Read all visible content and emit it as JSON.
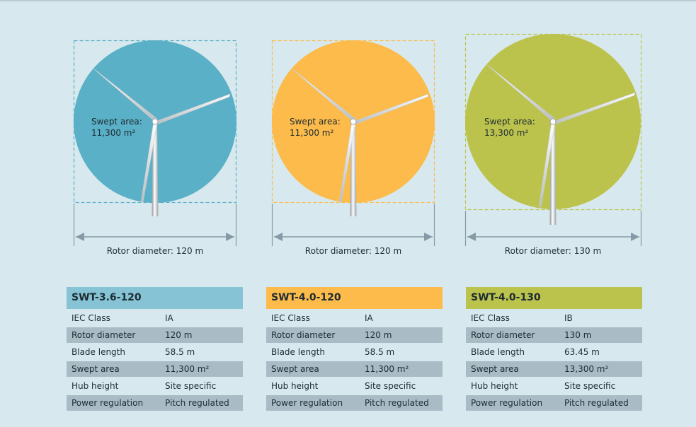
{
  "colors": {
    "background": "#d7e9ee",
    "blue": "#5ab0c6",
    "orange": "#fcbb4a",
    "green": "#bcc34d",
    "blue_head": "#86c3d4",
    "orange_head": "#fcbb4a",
    "green_head": "#bcc34d",
    "row_shade": "#a9bcc6",
    "dimension_line": "#8699a6"
  },
  "turbines": [
    {
      "model": "SWT-3.6-120",
      "swept_label": "Swept area:",
      "swept_value": "11,300 m²",
      "diameter_label": "Rotor diameter: 120 m",
      "specs": [
        {
          "key": "IEC Class",
          "value": "IA"
        },
        {
          "key": "Rotor diameter",
          "value": "120 m"
        },
        {
          "key": "Blade length",
          "value": "58.5 m"
        },
        {
          "key": "Swept area",
          "value": "11,300 m²"
        },
        {
          "key": "Hub height",
          "value": "Site specific"
        },
        {
          "key": "Power regulation",
          "value": "Pitch regulated"
        }
      ]
    },
    {
      "model": "SWT-4.0-120",
      "swept_label": "Swept area:",
      "swept_value": "11,300 m²",
      "diameter_label": "Rotor diameter: 120 m",
      "specs": [
        {
          "key": "IEC Class",
          "value": "IA"
        },
        {
          "key": "Rotor diameter",
          "value": "120 m"
        },
        {
          "key": "Blade length",
          "value": "58.5 m"
        },
        {
          "key": "Swept area",
          "value": "11,300 m²"
        },
        {
          "key": "Hub height",
          "value": "Site specific"
        },
        {
          "key": "Power regulation",
          "value": "Pitch regulated"
        }
      ]
    },
    {
      "model": "SWT-4.0-130",
      "swept_label": "Swept area:",
      "swept_value": "13,300 m²",
      "diameter_label": "Rotor diameter: 130 m",
      "specs": [
        {
          "key": "IEC Class",
          "value": "IB"
        },
        {
          "key": "Rotor diameter",
          "value": "130 m"
        },
        {
          "key": "Blade length",
          "value": "63.45 m"
        },
        {
          "key": "Swept area",
          "value": "13,300 m²"
        },
        {
          "key": "Hub height",
          "value": "Site specific"
        },
        {
          "key": "Power regulation",
          "value": "Pitch regulated"
        }
      ]
    }
  ]
}
